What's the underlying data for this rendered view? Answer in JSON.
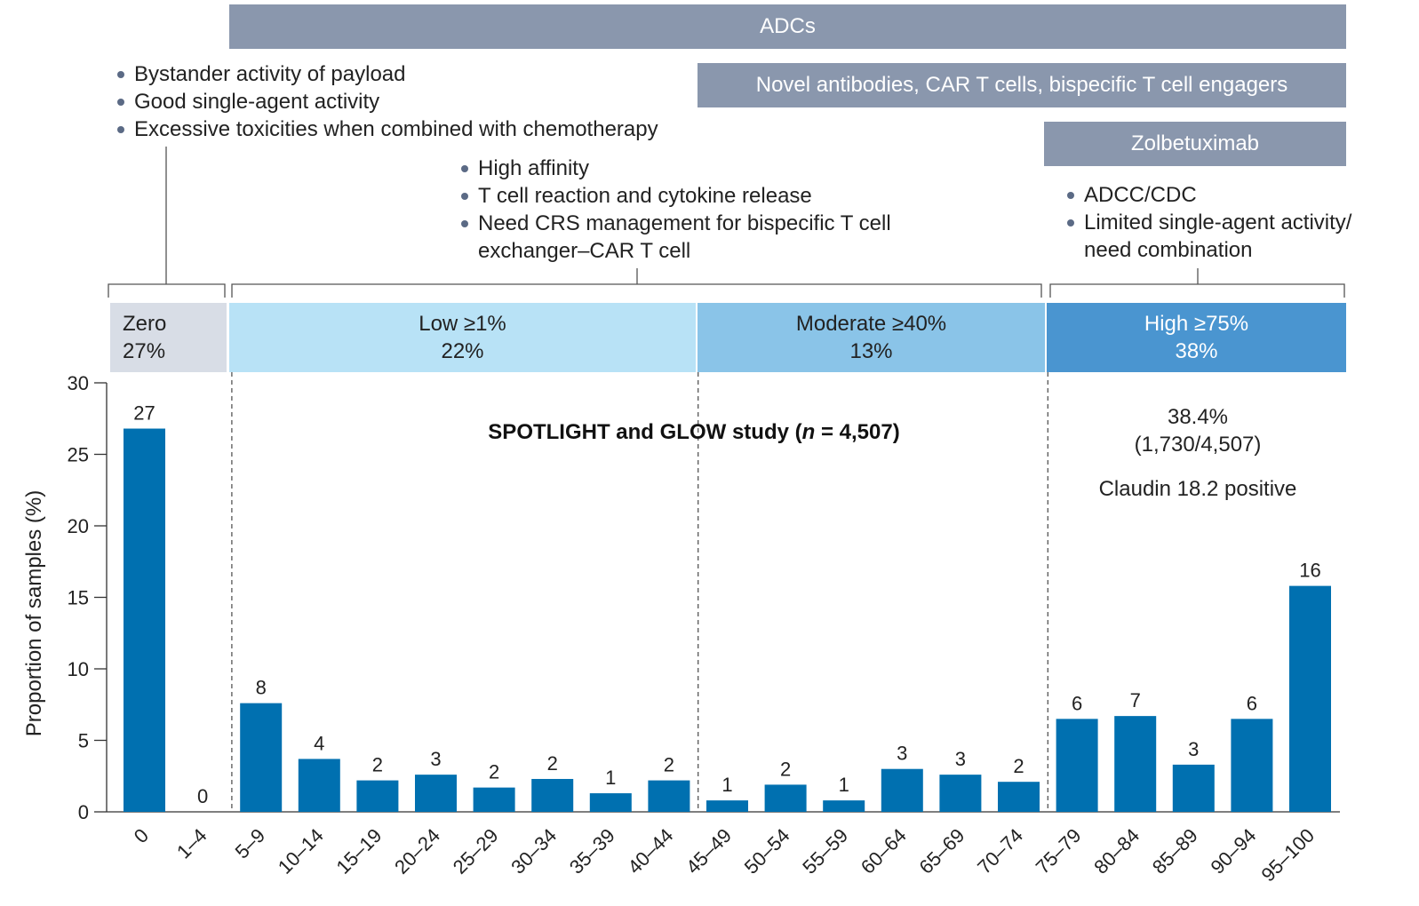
{
  "banners": {
    "adcs": "ADCs",
    "novel": "Novel antibodies, CAR T cells, bispecific T cell engagers",
    "zolbetuximab": "Zolbetuximab"
  },
  "notes": {
    "left": [
      "Bystander activity of payload",
      "Good single-agent activity",
      "Excessive toxicities when combined with chemotherapy"
    ],
    "middle": [
      "High affinity",
      "T cell reaction and cytokine release",
      "Need CRS management for bispecific T cell",
      "exchanger–CAR T cell"
    ],
    "right": [
      "ADCC/CDC",
      "Limited single-agent activity/",
      "need combination"
    ]
  },
  "bands": {
    "zero": {
      "name": "Zero",
      "pct": "27%"
    },
    "low": {
      "name": "Low ≥1%",
      "pct": "22%"
    },
    "moderate": {
      "name": "Moderate ≥40%",
      "pct": "13%"
    },
    "high": {
      "name": "High ≥75%",
      "pct": "38%"
    }
  },
  "colors": {
    "bar": "#0070b0",
    "banner": "#8a97ad",
    "zero": "#d8dde6",
    "low": "#b8e2f6",
    "moderate": "#8ac4e8",
    "high": "#4a95d0",
    "high_text": "#ffffff"
  },
  "chart_data": {
    "type": "bar",
    "title": "SPOTLIGHT and GLOW study (n = 4,507)",
    "title_parts": {
      "before": "SPOTLIGHT and GLOW study (",
      "italic": "n",
      "after": " = 4,507)"
    },
    "ylabel": "Proportion of samples (%)",
    "xlabel": "",
    "ylim": [
      0,
      30
    ],
    "yticks": [
      0,
      5,
      10,
      15,
      20,
      25,
      30
    ],
    "categories": [
      "0",
      "1–4",
      "5–9",
      "10–14",
      "15–19",
      "20–24",
      "25–29",
      "30–34",
      "35–39",
      "40–44",
      "45–49",
      "50–54",
      "55–59",
      "60–64",
      "65–69",
      "70–74",
      "75–79",
      "80–84",
      "85–89",
      "90–94",
      "95–100"
    ],
    "values": [
      26.8,
      0,
      7.6,
      3.7,
      2.2,
      2.6,
      1.7,
      2.3,
      1.3,
      2.2,
      0.8,
      1.9,
      0.8,
      3.0,
      2.6,
      2.1,
      6.5,
      6.7,
      3.3,
      6.5,
      15.8
    ],
    "labels": [
      "27",
      "0",
      "8",
      "4",
      "2",
      "3",
      "2",
      "2",
      "1",
      "2",
      "1",
      "2",
      "1",
      "3",
      "3",
      "2",
      "6",
      "7",
      "3",
      "6",
      "16"
    ],
    "divider_categories": [
      "1–4",
      "40–44",
      "70–74"
    ],
    "annotation": {
      "line1": "38.4%",
      "line2": "(1,730/4,507)",
      "line3": "Claudin 18.2 positive"
    }
  }
}
